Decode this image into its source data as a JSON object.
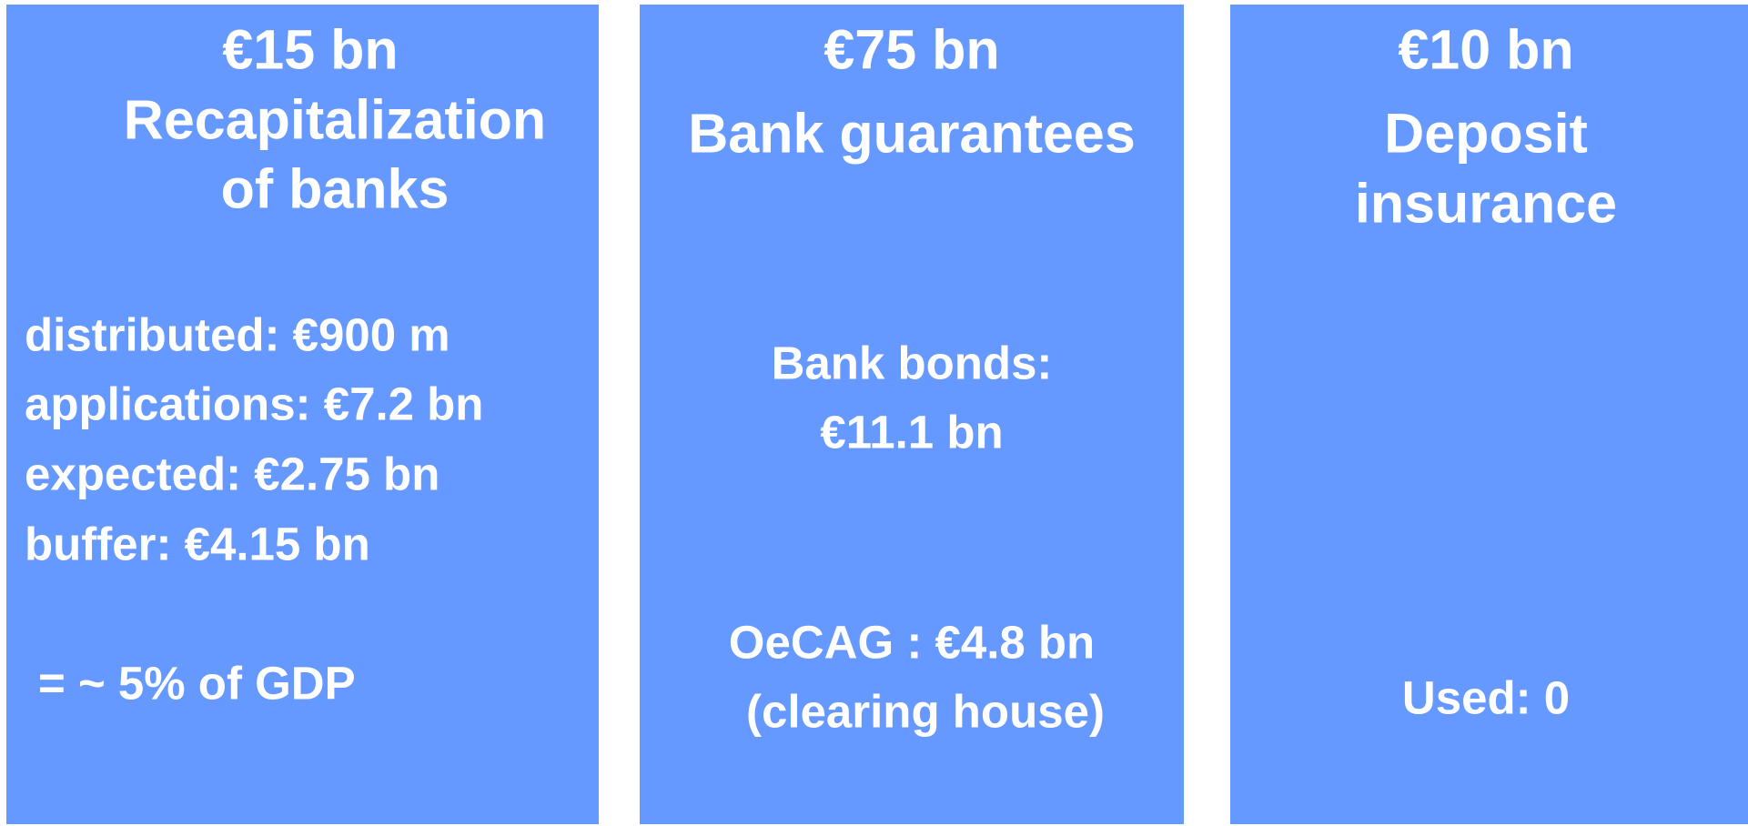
{
  "panels": [
    {
      "amount": "€15 bn",
      "title": [
        "Recapitalization",
        "of banks"
      ],
      "items": [
        "distributed: €900 m",
        "applications: €7.2 bn",
        "expected: €2.75 bn",
        "buffer: €4.15 bn"
      ],
      "note": [
        "= ~ 5% of GDP"
      ]
    },
    {
      "amount": "€75 bn",
      "title": [
        "Bank guarantees"
      ],
      "items": [
        "Bank bonds:",
        "€11.1 bn"
      ],
      "note": [
        "OeCAG : €4.8 bn",
        "(clearing house)"
      ]
    },
    {
      "amount": "€10 bn",
      "title": [
        "Deposit",
        "insurance"
      ],
      "note": [
        "Used: 0"
      ]
    }
  ]
}
